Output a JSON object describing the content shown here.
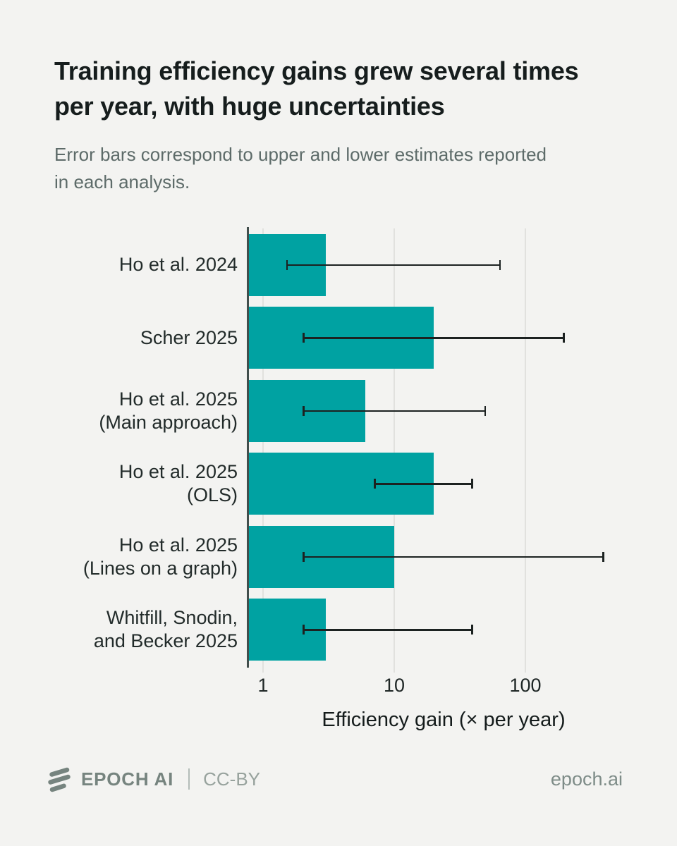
{
  "header": {
    "title": "Training efficiency gains grew several times per year, with huge uncertainties",
    "subtitle": "Error bars correspond to upper and lower estimates reported in each analysis."
  },
  "chart_data": {
    "type": "bar",
    "orientation": "horizontal",
    "x_scale": "log",
    "categories": [
      "Ho et al. 2024",
      "Scher 2025",
      "Ho et al. 2025 (Main approach)",
      "Ho et al. 2025 (OLS)",
      "Ho et al. 2025 (Lines on a graph)",
      "Whitfill, Snodin, and Becker 2025"
    ],
    "category_label_lines": [
      [
        "Ho et al. 2024"
      ],
      [
        "Scher 2025"
      ],
      [
        "Ho et al. 2025",
        "(Main approach)"
      ],
      [
        "Ho et al. 2025",
        "(OLS)"
      ],
      [
        "Ho et al. 2025",
        "(Lines on a graph)"
      ],
      [
        "Whitfill, Snodin,",
        "and Becker 2025"
      ]
    ],
    "values": [
      3,
      20,
      6,
      20,
      10,
      3
    ],
    "error_low": [
      1.5,
      2,
      2,
      7,
      2,
      2
    ],
    "error_high": [
      65,
      200,
      50,
      40,
      400,
      40
    ],
    "xlabel": "Efficiency gain (× per year)",
    "x_ticks": [
      1,
      10,
      100
    ],
    "x_tick_labels": [
      "1",
      "10",
      "100"
    ],
    "xlim": [
      0.78,
      725
    ],
    "grid": "vertical-at-ticks",
    "legend": "none",
    "bar_color": "#00a2a2",
    "error_color": "#1c2221"
  },
  "footer": {
    "logo_icon": "epoch-logo-icon",
    "brand": "EPOCH AI",
    "license": "CC-BY",
    "site": "epoch.ai"
  },
  "colors": {
    "background": "#f3f3f1",
    "title": "#161d1d",
    "subtitle": "#5d6b69",
    "accent_teal": "#00a2a2",
    "axis": "#414e4c",
    "gridline": "#e1e1de",
    "footer_gray": "#7e8c88"
  }
}
